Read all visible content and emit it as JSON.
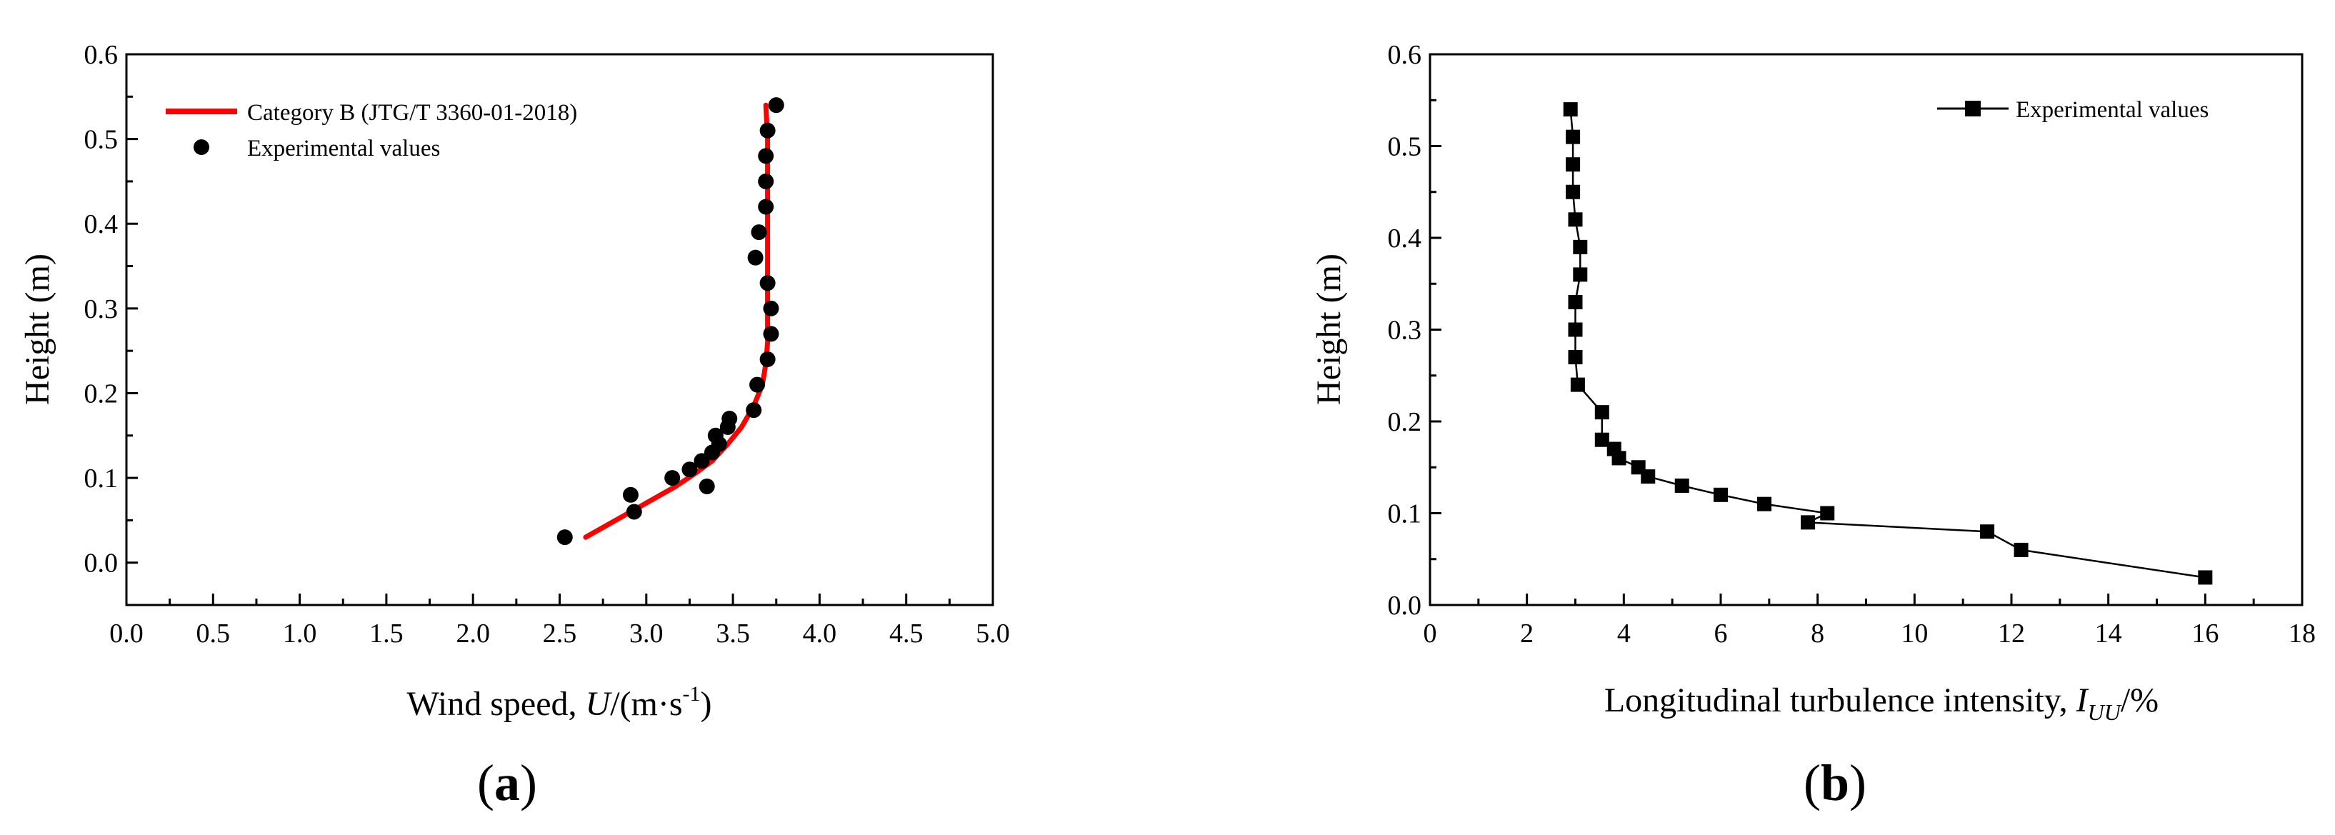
{
  "chart_data": [
    {
      "type": "scatter",
      "panel_label_open": "(",
      "panel_label": "a",
      "panel_label_close": ")",
      "xlabel": "Wind speed, ",
      "xlabel_var": "U",
      "xlabel_unit": "/(m·s",
      "xlabel_exp": "-1",
      "xlabel_close": ")",
      "ylabel": "Height (m)",
      "xlim": [
        0,
        5
      ],
      "ylim": [
        -0.05,
        0.6
      ],
      "xticks": [
        "0.0",
        "0.5",
        "1.0",
        "1.5",
        "2.0",
        "2.5",
        "3.0",
        "3.5",
        "4.0",
        "4.5",
        "5.0"
      ],
      "yticks": [
        "0.0",
        "0.1",
        "0.2",
        "0.3",
        "0.4",
        "0.5",
        "0.6"
      ],
      "xtick_values": [
        0,
        0.5,
        1,
        1.5,
        2,
        2.5,
        3,
        3.5,
        4,
        4.5,
        5
      ],
      "ytick_values": [
        0,
        0.1,
        0.2,
        0.3,
        0.4,
        0.5,
        0.6
      ],
      "legend_position": "top-left",
      "series": [
        {
          "name": "Category B (JTG/T 3360-01-2018)",
          "style": "line",
          "color": "#ff0000",
          "x": [
            2.65,
            2.78,
            2.91,
            3.04,
            3.17,
            3.28,
            3.38,
            3.47,
            3.55,
            3.62,
            3.67,
            3.69,
            3.7,
            3.7,
            3.7,
            3.7,
            3.69
          ],
          "y": [
            0.03,
            0.045,
            0.06,
            0.075,
            0.09,
            0.105,
            0.12,
            0.14,
            0.16,
            0.185,
            0.21,
            0.235,
            0.26,
            0.3,
            0.4,
            0.5,
            0.54
          ]
        },
        {
          "name": "Experimental values",
          "style": "marker-circle",
          "color": "#000000",
          "x": [
            2.53,
            2.93,
            2.91,
            3.35,
            3.15,
            3.25,
            3.32,
            3.38,
            3.42,
            3.4,
            3.47,
            3.48,
            3.62,
            3.64,
            3.7,
            3.72,
            3.72,
            3.7,
            3.63,
            3.65,
            3.69,
            3.69,
            3.69,
            3.7,
            3.75
          ],
          "y": [
            0.03,
            0.06,
            0.08,
            0.09,
            0.1,
            0.11,
            0.12,
            0.13,
            0.14,
            0.15,
            0.16,
            0.17,
            0.18,
            0.21,
            0.24,
            0.27,
            0.3,
            0.33,
            0.36,
            0.39,
            0.42,
            0.45,
            0.48,
            0.51,
            0.54
          ]
        }
      ]
    },
    {
      "type": "line",
      "panel_label_open": "(",
      "panel_label": "b",
      "panel_label_close": ")",
      "xlabel": "Longitudinal turbulence intensity, ",
      "xlabel_var": "I",
      "xlabel_sub": "UU",
      "xlabel_unit": "/%",
      "ylabel": "Height (m)",
      "xlim": [
        0,
        18
      ],
      "ylim": [
        0,
        0.6
      ],
      "xticks": [
        "0",
        "2",
        "4",
        "6",
        "8",
        "10",
        "12",
        "14",
        "16",
        "18"
      ],
      "yticks": [
        "0.0",
        "0.1",
        "0.2",
        "0.3",
        "0.4",
        "0.5",
        "0.6"
      ],
      "xtick_values": [
        0,
        2,
        4,
        6,
        8,
        10,
        12,
        14,
        16,
        18
      ],
      "ytick_values": [
        0,
        0.1,
        0.2,
        0.3,
        0.4,
        0.5,
        0.6
      ],
      "legend_position": "top-right",
      "series": [
        {
          "name": "Experimental values",
          "style": "line-square",
          "color": "#000000",
          "x": [
            2.9,
            2.95,
            2.95,
            2.95,
            3.0,
            3.1,
            3.1,
            3.0,
            3.0,
            3.0,
            3.05,
            3.55,
            3.55,
            3.8,
            3.9,
            4.3,
            4.5,
            5.2,
            6.0,
            6.9,
            8.2,
            7.8,
            11.5,
            12.2,
            16.0
          ],
          "y": [
            0.54,
            0.51,
            0.48,
            0.45,
            0.42,
            0.39,
            0.36,
            0.33,
            0.3,
            0.27,
            0.24,
            0.21,
            0.18,
            0.17,
            0.16,
            0.15,
            0.14,
            0.13,
            0.12,
            0.11,
            0.1,
            0.09,
            0.08,
            0.06,
            0.03
          ]
        }
      ]
    }
  ]
}
